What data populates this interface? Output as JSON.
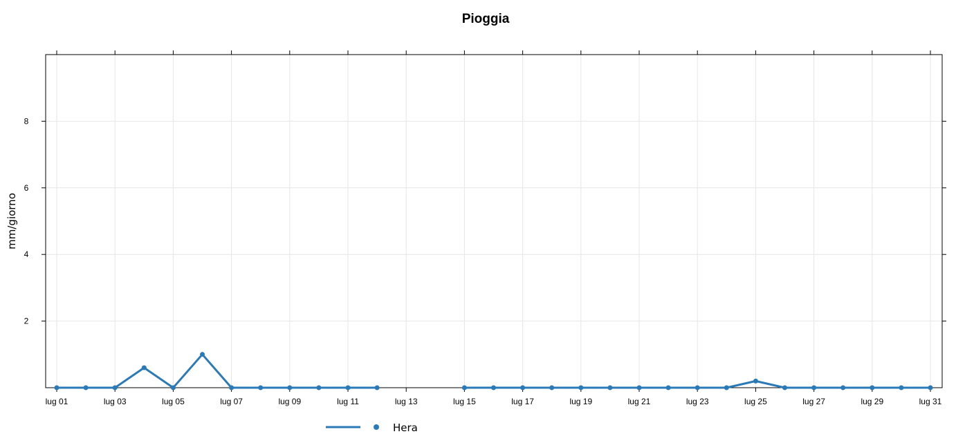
{
  "chart_data": {
    "type": "line",
    "title": "Pioggia",
    "xlabel": "",
    "ylabel": "mm/giorno",
    "x": [
      "lug 01",
      "lug 02",
      "lug 03",
      "lug 04",
      "lug 05",
      "lug 06",
      "lug 07",
      "lug 08",
      "lug 09",
      "lug 10",
      "lug 11",
      "lug 12",
      "lug 13",
      "lug 14",
      "lug 15",
      "lug 16",
      "lug 17",
      "lug 18",
      "lug 19",
      "lug 20",
      "lug 21",
      "lug 22",
      "lug 23",
      "lug 24",
      "lug 25",
      "lug 26",
      "lug 27",
      "lug 28",
      "lug 29",
      "lug 30",
      "lug 31"
    ],
    "x_tick_labels": [
      "lug 01",
      "lug 03",
      "lug 05",
      "lug 07",
      "lug 09",
      "lug 11",
      "lug 13",
      "lug 15",
      "lug 17",
      "lug 19",
      "lug 21",
      "lug 23",
      "lug 25",
      "lug 27",
      "lug 29",
      "lug 31"
    ],
    "y_ticks": [
      2,
      4,
      6,
      8
    ],
    "ylim": [
      0,
      10
    ],
    "grid": true,
    "legend_position": "bottom",
    "series": [
      {
        "name": "Hera",
        "color": "#2a7ab8",
        "values": [
          0,
          0,
          0,
          0.6,
          0,
          1.0,
          0,
          0,
          0,
          0,
          0,
          0,
          null,
          null,
          0,
          0,
          0,
          0,
          0,
          0,
          0,
          0,
          0,
          0,
          0.2,
          0,
          0,
          0,
          0,
          0,
          0
        ]
      }
    ]
  }
}
